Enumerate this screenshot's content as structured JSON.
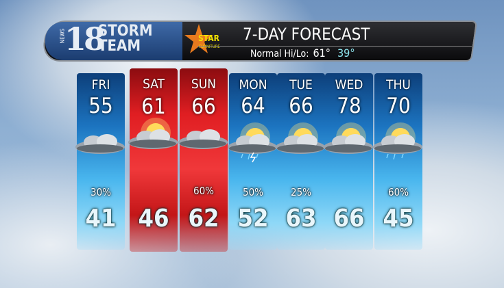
{
  "header": {
    "station_number": "18",
    "station_label": "NEWS",
    "brand_line1": "STORM",
    "brand_line2": "TEAM",
    "sponsor_name": "STAR",
    "sponsor_sub": "FURNITURE",
    "title": "7-DAY FORECAST",
    "normal_label": "Normal Hi/Lo:",
    "normal_hi": "61°",
    "normal_lo": "39°"
  },
  "colors": {
    "hi_normal": "#ffffff",
    "lo_normal": "#8ee6ef",
    "cool_column": "#1c74c0",
    "warm_column": "#e01e22",
    "sponsor_star": "#e87a1e",
    "sponsor_text": "#f4e300"
  },
  "days": [
    {
      "day": "FRI",
      "high": "55",
      "low": "41",
      "precip": "30%",
      "icon": "cloudy-icon",
      "warm": false
    },
    {
      "day": "SAT",
      "high": "61",
      "low": "46",
      "precip": "",
      "icon": "partly-cloudy-icon",
      "warm": true
    },
    {
      "day": "SUN",
      "high": "66",
      "low": "62",
      "precip": "60%",
      "icon": "cloudy-icon",
      "warm": true
    },
    {
      "day": "MON",
      "high": "64",
      "low": "52",
      "precip": "50%",
      "icon": "thunderstorm-icon",
      "warm": false
    },
    {
      "day": "TUE",
      "high": "66",
      "low": "63",
      "precip": "25%",
      "icon": "partly-cloudy-icon",
      "warm": false
    },
    {
      "day": "WED",
      "high": "78",
      "low": "66",
      "precip": "",
      "icon": "partly-sunny-icon",
      "warm": false
    },
    {
      "day": "THU",
      "high": "70",
      "low": "45",
      "precip": "60%",
      "icon": "rain-showers-icon",
      "warm": false
    }
  ]
}
